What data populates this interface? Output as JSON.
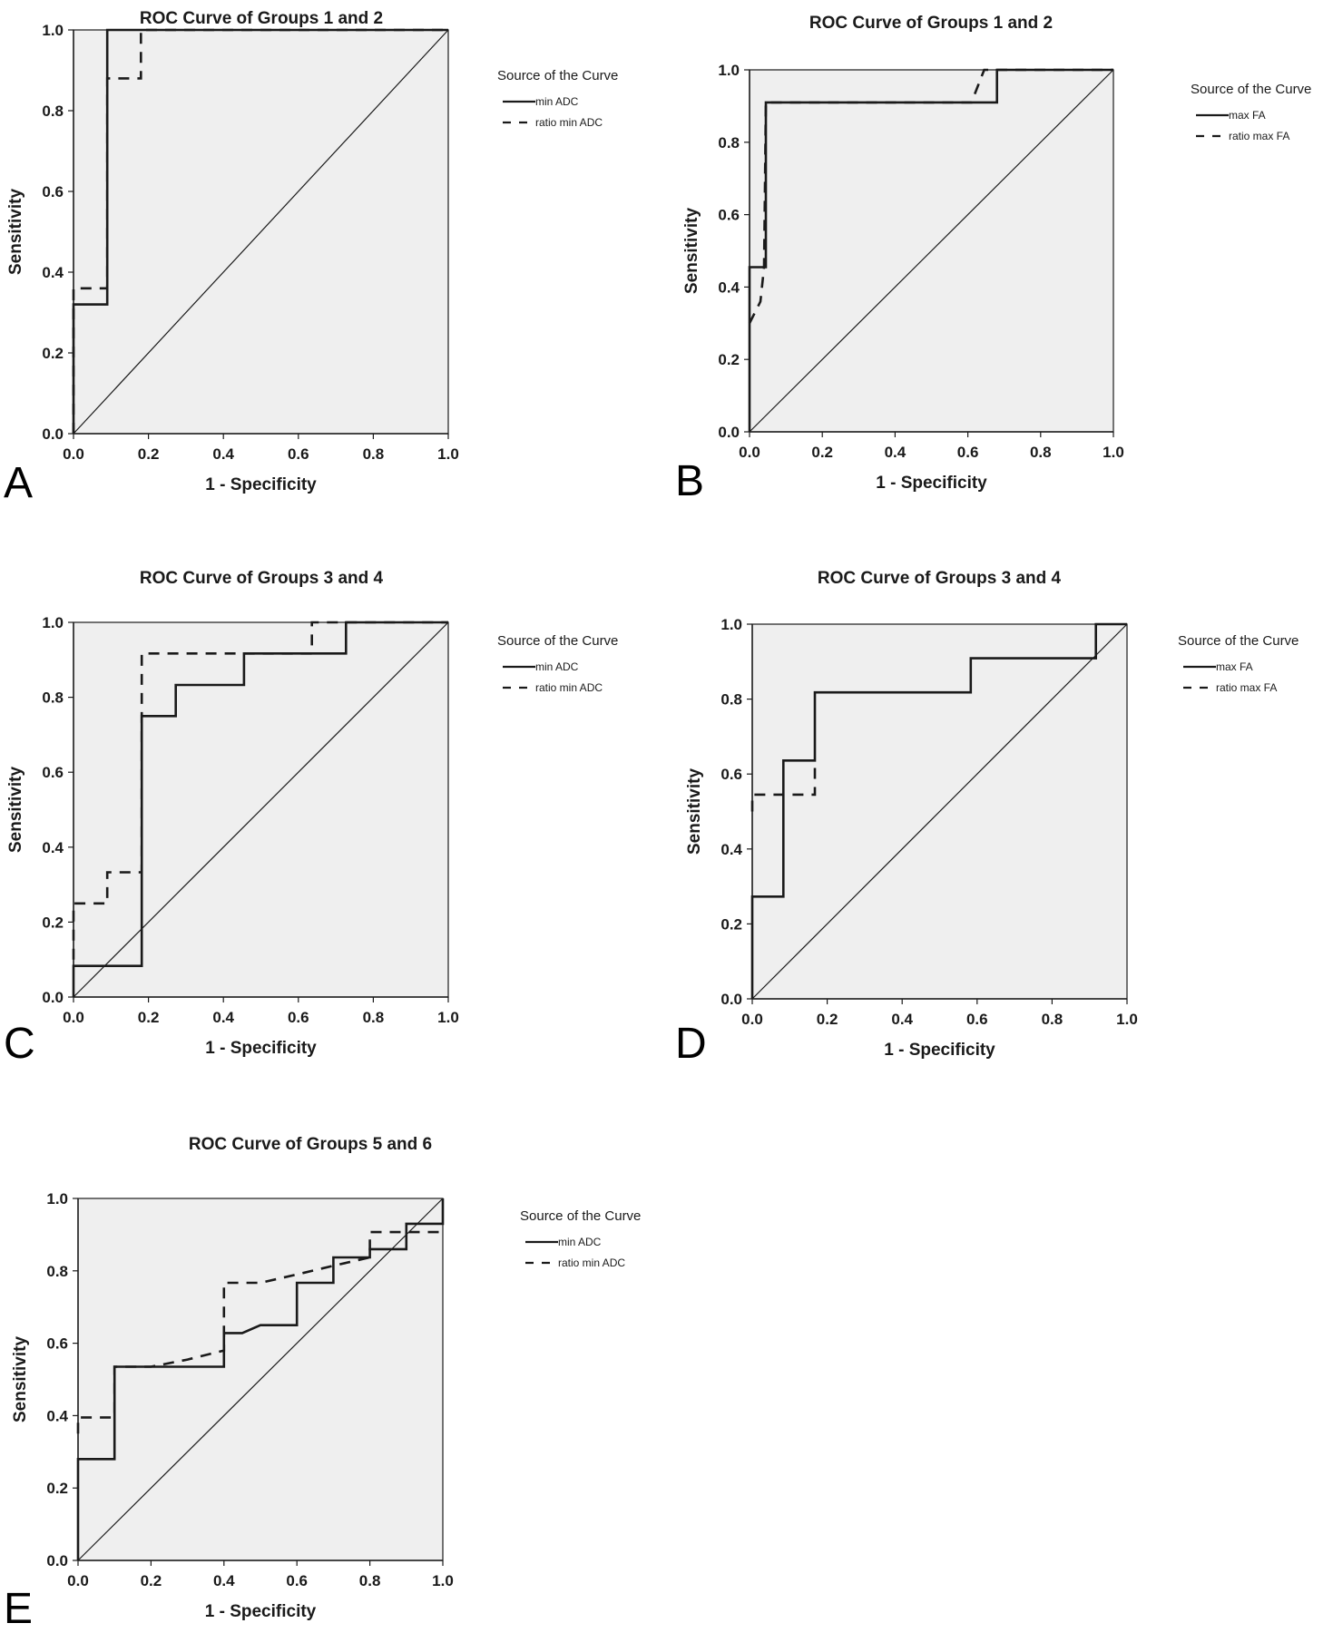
{
  "figure": {
    "colors": {
      "plot_background": "#efefef",
      "line": "#1a1a1a",
      "reference_line": "#1a1a1a"
    }
  },
  "chart_data": [
    {
      "panel": "A",
      "type": "line",
      "title": "ROC Curve of Groups 1 and 2",
      "xlabel": "1 - Specificity",
      "ylabel": "Sensitivity",
      "xlim": [
        0,
        1
      ],
      "ylim": [
        0,
        1
      ],
      "x_ticks": [
        "0.0",
        "0.2",
        "0.4",
        "0.6",
        "0.8",
        "1.0"
      ],
      "y_ticks": [
        "0.0",
        "0.2",
        "0.4",
        "0.6",
        "0.8",
        "1.0"
      ],
      "legend_title": "Source of the Curve",
      "legend_position": "right",
      "series": [
        {
          "name": "min ADC",
          "style": "solid",
          "points": [
            [
              0,
              0
            ],
            [
              0,
              0.32
            ],
            [
              0.09,
              0.32
            ],
            [
              0.09,
              1
            ],
            [
              1,
              1
            ]
          ]
        },
        {
          "name": "ratio min ADC",
          "style": "dashed",
          "points": [
            [
              0,
              0
            ],
            [
              0,
              0.36
            ],
            [
              0.09,
              0.36
            ],
            [
              0.09,
              0.88
            ],
            [
              0.18,
              0.88
            ],
            [
              0.18,
              1
            ],
            [
              1,
              1
            ]
          ]
        }
      ]
    },
    {
      "panel": "B",
      "type": "line",
      "title": "ROC Curve of Groups 1 and 2",
      "xlabel": "1 - Specificity",
      "ylabel": "Sensitivity",
      "xlim": [
        0,
        1
      ],
      "ylim": [
        0,
        1
      ],
      "x_ticks": [
        "0.0",
        "0.2",
        "0.4",
        "0.6",
        "0.8",
        "1.0"
      ],
      "y_ticks": [
        "0.0",
        "0.2",
        "0.4",
        "0.6",
        "0.8",
        "1.0"
      ],
      "legend_title": "Source of the Curve",
      "legend_position": "right",
      "series": [
        {
          "name": "max FA",
          "style": "solid",
          "points": [
            [
              0,
              0
            ],
            [
              0,
              0.455
            ],
            [
              0.045,
              0.455
            ],
            [
              0.045,
              0.91
            ],
            [
              0.68,
              0.91
            ],
            [
              0.68,
              1
            ],
            [
              1,
              1
            ]
          ]
        },
        {
          "name": "ratio max FA",
          "style": "dashed",
          "points": [
            [
              0,
              0.3
            ],
            [
              0.03,
              0.36
            ],
            [
              0.04,
              0.455
            ],
            [
              0.045,
              0.91
            ],
            [
              0.61,
              0.91
            ],
            [
              0.645,
              1
            ],
            [
              1,
              1
            ]
          ]
        }
      ]
    },
    {
      "panel": "C",
      "type": "line",
      "title": "ROC Curve of Groups 3 and 4",
      "xlabel": "1 - Specificity",
      "ylabel": "Sensitivity",
      "xlim": [
        0,
        1
      ],
      "ylim": [
        0,
        1
      ],
      "x_ticks": [
        "0.0",
        "0.2",
        "0.4",
        "0.6",
        "0.8",
        "1.0"
      ],
      "y_ticks": [
        "0.0",
        "0.2",
        "0.4",
        "0.6",
        "0.8",
        "1.0"
      ],
      "legend_title": "Source of the Curve",
      "legend_position": "right",
      "series": [
        {
          "name": "min ADC",
          "style": "solid",
          "points": [
            [
              0,
              0
            ],
            [
              0,
              0.083
            ],
            [
              0.182,
              0.083
            ],
            [
              0.182,
              0.75
            ],
            [
              0.273,
              0.75
            ],
            [
              0.273,
              0.833
            ],
            [
              0.455,
              0.833
            ],
            [
              0.455,
              0.917
            ],
            [
              0.727,
              0.917
            ],
            [
              0.727,
              1
            ],
            [
              1,
              1
            ]
          ]
        },
        {
          "name": "ratio min ADC",
          "style": "dashed",
          "points": [
            [
              0,
              0.1
            ],
            [
              0,
              0.25
            ],
            [
              0.09,
              0.25
            ],
            [
              0.09,
              0.333
            ],
            [
              0.182,
              0.333
            ],
            [
              0.182,
              0.917
            ],
            [
              0.636,
              0.917
            ],
            [
              0.636,
              1
            ],
            [
              1,
              1
            ]
          ]
        }
      ]
    },
    {
      "panel": "D",
      "type": "line",
      "title": "ROC Curve of Groups 3 and 4",
      "xlabel": "1 - Specificity",
      "ylabel": "Sensitivity",
      "xlim": [
        0,
        1
      ],
      "ylim": [
        0,
        1
      ],
      "x_ticks": [
        "0.0",
        "0.2",
        "0.4",
        "0.6",
        "0.8",
        "1.0"
      ],
      "y_ticks": [
        "0.0",
        "0.2",
        "0.4",
        "0.6",
        "0.8",
        "1.0"
      ],
      "legend_title": "Source of the Curve",
      "legend_position": "right",
      "series": [
        {
          "name": "max FA",
          "style": "solid",
          "points": [
            [
              0,
              0
            ],
            [
              0,
              0.273
            ],
            [
              0.083,
              0.273
            ],
            [
              0.083,
              0.636
            ],
            [
              0.167,
              0.636
            ],
            [
              0.167,
              0.818
            ],
            [
              0.583,
              0.818
            ],
            [
              0.583,
              0.909
            ],
            [
              0.917,
              0.909
            ],
            [
              0.917,
              1
            ],
            [
              1,
              1
            ]
          ]
        },
        {
          "name": "ratio max FA",
          "style": "dashed",
          "points": [
            [
              0,
              0.5
            ],
            [
              0,
              0.545
            ],
            [
              0.167,
              0.545
            ],
            [
              0.167,
              0.636
            ]
          ]
        }
      ]
    },
    {
      "panel": "E",
      "type": "line",
      "title": "ROC Curve of Groups 5 and 6",
      "xlabel": "1 - Specificity",
      "ylabel": "Sensitivity",
      "xlim": [
        0,
        1
      ],
      "ylim": [
        0,
        1
      ],
      "x_ticks": [
        "0.0",
        "0.2",
        "0.4",
        "0.6",
        "0.8",
        "1.0"
      ],
      "y_ticks": [
        "0.0",
        "0.2",
        "0.4",
        "0.6",
        "0.8",
        "1.0"
      ],
      "legend_title": "Source of the Curve",
      "legend_position": "right",
      "series": [
        {
          "name": "min ADC",
          "style": "solid",
          "points": [
            [
              0,
              0
            ],
            [
              0,
              0.28
            ],
            [
              0.1,
              0.28
            ],
            [
              0.1,
              0.535
            ],
            [
              0.4,
              0.535
            ],
            [
              0.4,
              0.628
            ],
            [
              0.45,
              0.628
            ],
            [
              0.5,
              0.65
            ],
            [
              0.6,
              0.65
            ],
            [
              0.6,
              0.767
            ],
            [
              0.7,
              0.767
            ],
            [
              0.7,
              0.837
            ],
            [
              0.8,
              0.837
            ],
            [
              0.8,
              0.86
            ],
            [
              0.9,
              0.86
            ],
            [
              0.9,
              0.93
            ],
            [
              1,
              0.93
            ],
            [
              1,
              1
            ]
          ]
        },
        {
          "name": "ratio min ADC",
          "style": "dashed",
          "points": [
            [
              0,
              0.35
            ],
            [
              0,
              0.395
            ],
            [
              0.1,
              0.395
            ],
            [
              0.1,
              0.535
            ],
            [
              0.2,
              0.535
            ],
            [
              0.3,
              0.555
            ],
            [
              0.4,
              0.58
            ],
            [
              0.4,
              0.767
            ],
            [
              0.5,
              0.767
            ],
            [
              0.6,
              0.79
            ],
            [
              0.7,
              0.814
            ],
            [
              0.8,
              0.837
            ],
            [
              0.8,
              0.907
            ],
            [
              0.9,
              0.907
            ],
            [
              1,
              0.907
            ]
          ]
        }
      ]
    }
  ]
}
